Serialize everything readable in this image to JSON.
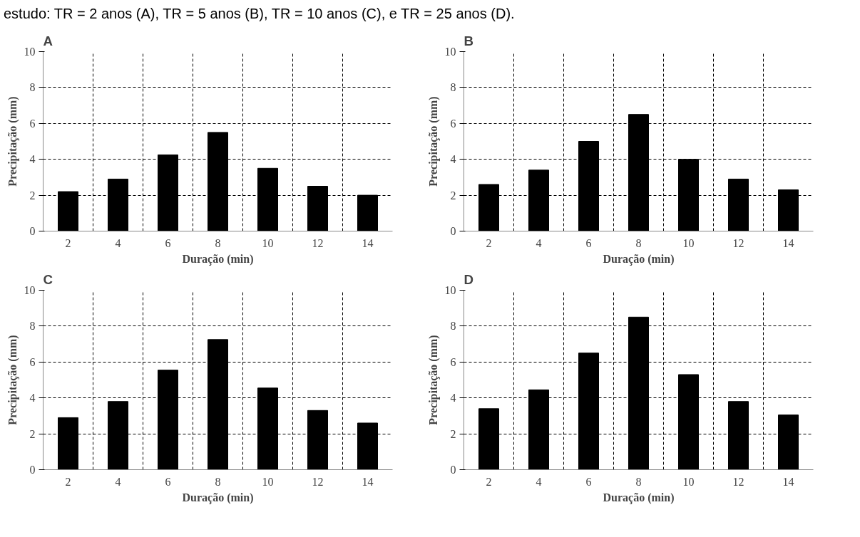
{
  "chart_data": [
    {
      "type": "bar",
      "title": "A",
      "annotations": [
        "estudo: TR = 2 anos (A), TR = 5 anos (B), TR = 10 anos (C), e TR = 25 anos (D)."
      ],
      "xlabel": "Duração (min)",
      "ylabel": "Precipitação (mm)",
      "categories": [
        "2",
        "4",
        "6",
        "8",
        "10",
        "12",
        "14"
      ],
      "values": [
        2.2,
        2.9,
        4.25,
        5.5,
        3.5,
        2.5,
        2.0
      ],
      "color": "#000000",
      "ylim": [
        0,
        10
      ],
      "yticks": [
        0,
        2,
        4,
        6,
        8,
        10
      ],
      "grid": true
    },
    {
      "type": "bar",
      "title": "B",
      "xlabel": "Duração (min)",
      "ylabel": "Precipitação (mm)",
      "categories": [
        "2",
        "4",
        "6",
        "8",
        "10",
        "12",
        "14"
      ],
      "values": [
        2.6,
        3.4,
        5.0,
        6.5,
        4.0,
        2.9,
        2.3
      ],
      "color": "#000000",
      "ylim": [
        0,
        10
      ],
      "yticks": [
        0,
        2,
        4,
        6,
        8,
        10
      ],
      "grid": true
    },
    {
      "type": "bar",
      "title": "C",
      "xlabel": "Duração (min)",
      "ylabel": "Precipitação (mm)",
      "categories": [
        "2",
        "4",
        "6",
        "8",
        "10",
        "12",
        "14"
      ],
      "values": [
        2.9,
        3.8,
        5.55,
        7.25,
        4.55,
        3.3,
        2.6
      ],
      "color": "#000000",
      "ylim": [
        0,
        10
      ],
      "yticks": [
        0,
        2,
        4,
        6,
        8,
        10
      ],
      "grid": true
    },
    {
      "type": "bar",
      "title": "D",
      "xlabel": "Duração (min)",
      "ylabel": "Precipitação (mm)",
      "categories": [
        "2",
        "4",
        "6",
        "8",
        "10",
        "12",
        "14"
      ],
      "values": [
        3.4,
        4.45,
        6.5,
        8.5,
        5.3,
        3.8,
        3.05
      ],
      "color": "#000000",
      "ylim": [
        0,
        10
      ],
      "yticks": [
        0,
        2,
        4,
        6,
        8,
        10
      ],
      "grid": true
    }
  ]
}
